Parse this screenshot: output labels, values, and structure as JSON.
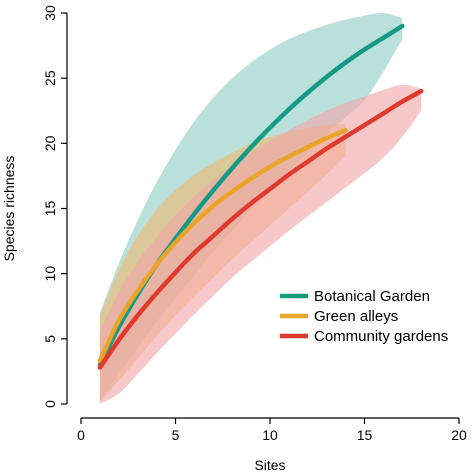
{
  "chart_data": {
    "type": "line",
    "title": "",
    "xlabel": "Sites",
    "ylabel": "Species richness",
    "xlim": [
      0,
      20
    ],
    "ylim": [
      0,
      30
    ],
    "xticks": [
      0,
      5,
      10,
      15,
      20
    ],
    "yticks": [
      0,
      5,
      10,
      15,
      20,
      25,
      30
    ],
    "grid": false,
    "legend": "bottom-right",
    "series": [
      {
        "name": "Botanical Garden",
        "color": "#159a84",
        "band_color": "#8fcdc7",
        "x": [
          1,
          2,
          3,
          4,
          5,
          6,
          7,
          8,
          9,
          10,
          11,
          12,
          13,
          14,
          15,
          16,
          17
        ],
        "y": [
          3.0,
          5.9,
          8.4,
          10.7,
          12.7,
          14.6,
          16.4,
          18.1,
          19.7,
          21.2,
          22.6,
          23.9,
          25.1,
          26.2,
          27.2,
          28.1,
          29.0
        ],
        "lower": [
          0.2,
          2.3,
          4.3,
          6.3,
          8.1,
          9.9,
          11.7,
          13.3,
          14.9,
          16.4,
          17.9,
          19.3,
          20.7,
          22.0,
          23.3,
          25.5,
          28.0
        ],
        "upper": [
          7.0,
          10.8,
          14.1,
          17.0,
          19.5,
          21.7,
          23.5,
          25.0,
          26.2,
          27.2,
          28.0,
          28.6,
          29.1,
          29.5,
          29.8,
          30.0,
          29.6
        ]
      },
      {
        "name": "Green alleys",
        "color": "#eaa42a",
        "band_color": "#edb96e",
        "x": [
          1,
          2,
          3,
          4,
          5,
          6,
          7,
          8,
          9,
          10,
          11,
          12,
          13,
          14
        ],
        "y": [
          3.3,
          6.4,
          8.7,
          10.7,
          12.4,
          13.9,
          15.2,
          16.3,
          17.3,
          18.2,
          19.0,
          19.7,
          20.4,
          21.0
        ],
        "lower": [
          0.2,
          1.8,
          3.5,
          5.2,
          6.8,
          8.3,
          9.7,
          11.1,
          12.4,
          13.7,
          15.0,
          16.3,
          17.6,
          19.0
        ],
        "upper": [
          6.8,
          10.3,
          12.9,
          14.9,
          16.4,
          17.6,
          18.5,
          19.3,
          20.0,
          20.5,
          20.9,
          21.2,
          21.4,
          21.5
        ]
      },
      {
        "name": "Community gardens",
        "color": "#e03a2e",
        "band_color": "#f2a7aa",
        "x": [
          1,
          2,
          3,
          4,
          5,
          6,
          7,
          8,
          9,
          10,
          11,
          12,
          13,
          14,
          15,
          16,
          17,
          18
        ],
        "y": [
          2.8,
          4.9,
          6.8,
          8.5,
          10.1,
          11.6,
          12.9,
          14.2,
          15.4,
          16.5,
          17.6,
          18.6,
          19.6,
          20.5,
          21.4,
          22.3,
          23.2,
          24.0
        ],
        "lower": [
          0.0,
          0.8,
          2.3,
          3.9,
          5.4,
          6.9,
          8.3,
          9.7,
          10.9,
          12.1,
          13.3,
          14.4,
          15.5,
          16.6,
          17.7,
          18.9,
          20.5,
          22.5
        ],
        "upper": [
          5.6,
          8.6,
          10.9,
          12.8,
          14.5,
          15.9,
          17.2,
          18.3,
          19.3,
          20.2,
          21.0,
          21.8,
          22.5,
          23.1,
          23.6,
          24.1,
          24.5,
          24.2
        ]
      }
    ]
  }
}
